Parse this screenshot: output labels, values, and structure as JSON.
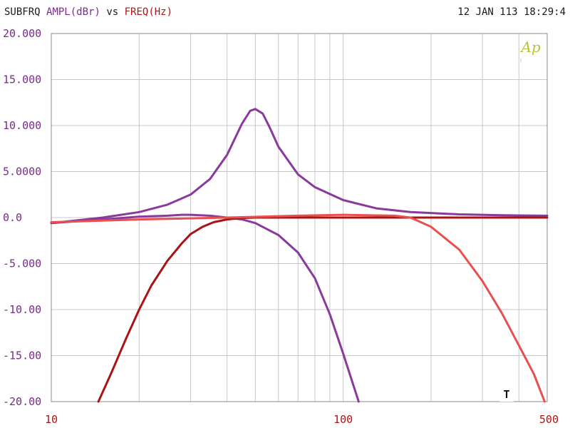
{
  "header": {
    "prefix": "SUBFRQ",
    "y_quantity": "AMPL(dBr)",
    "vs": "vs",
    "x_quantity": "FREQ(Hz)",
    "timestamp": "12 JAN 113 18:29:4"
  },
  "logo_text": "Ap",
  "marker_label": "T",
  "colors": {
    "y_axis": "#7a2a8c",
    "x_axis": "#b01414",
    "header_prefix": "#1a1a1a",
    "grid": "#c8c8c8",
    "logo": "#b8c23a"
  },
  "chart_data": {
    "type": "line",
    "x_scale": "log",
    "xlim": [
      10,
      500
    ],
    "ylim": [
      -20,
      20
    ],
    "grid": true,
    "x_tick_labels": [
      "10",
      "100",
      "500"
    ],
    "y_tick_labels": [
      "20.000",
      "15.000",
      "10.000",
      "5.0000",
      "0.0",
      "-5.000",
      "-10.00",
      "-15.00",
      "-20.00"
    ],
    "y_tick_values": [
      20,
      15,
      10,
      5,
      0,
      -5,
      -10,
      -15,
      -20
    ],
    "series": [
      {
        "color": "#8a3a9c",
        "x": [
          10,
          15,
          20,
          25,
          30,
          35,
          40,
          45,
          48,
          50,
          53,
          56,
          60,
          70,
          80,
          100,
          130,
          170,
          250,
          350,
          500
        ],
        "y": [
          -0.6,
          0.0,
          0.6,
          1.4,
          2.5,
          4.2,
          6.8,
          10.2,
          11.6,
          11.8,
          11.3,
          9.8,
          7.7,
          4.7,
          3.3,
          1.9,
          1.0,
          0.6,
          0.35,
          0.25,
          0.2
        ]
      },
      {
        "color": "#8a3a9c",
        "x": [
          10,
          15,
          20,
          25,
          28,
          30,
          35,
          40,
          45,
          50,
          60,
          70,
          80,
          90,
          100,
          113
        ],
        "y": [
          -0.6,
          -0.2,
          0.1,
          0.2,
          0.3,
          0.3,
          0.2,
          0.0,
          -0.2,
          -0.6,
          -1.9,
          -3.8,
          -6.6,
          -10.5,
          -14.8,
          -20.0
        ]
      },
      {
        "color": "#a81414",
        "x": [
          14.5,
          16,
          18,
          20,
          22,
          25,
          28,
          30,
          33,
          36,
          40,
          45,
          50,
          60,
          100,
          200,
          500
        ],
        "y": [
          -20.0,
          -17.0,
          -13.2,
          -10.0,
          -7.4,
          -4.7,
          -2.8,
          -1.8,
          -1.0,
          -0.5,
          -0.2,
          -0.05,
          0.0,
          0.0,
          0.0,
          0.0,
          0.0
        ]
      },
      {
        "color": "#e85050",
        "x": [
          10,
          20,
          40,
          70,
          100,
          150,
          170,
          200,
          250,
          300,
          350,
          400,
          450,
          490
        ],
        "y": [
          -0.5,
          -0.2,
          0.0,
          0.2,
          0.3,
          0.2,
          0.0,
          -1.0,
          -3.5,
          -6.9,
          -10.4,
          -13.9,
          -17.0,
          -20.0
        ]
      }
    ]
  }
}
